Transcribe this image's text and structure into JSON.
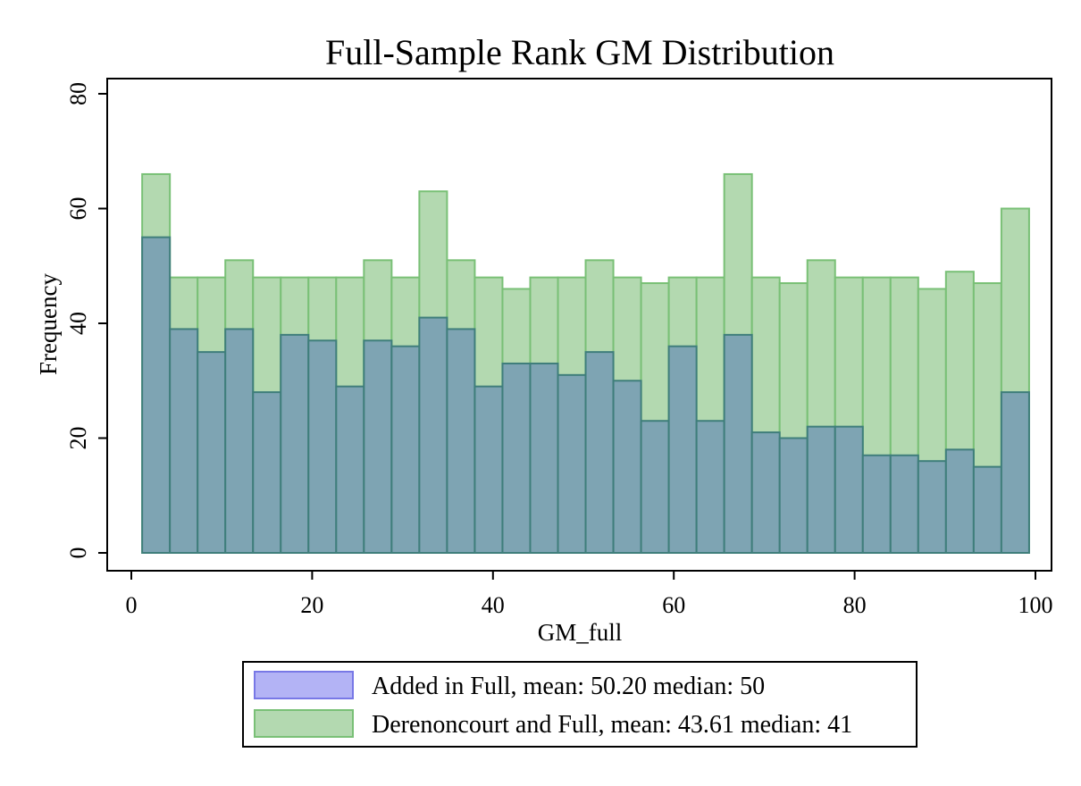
{
  "chart_data": {
    "type": "bar",
    "title": "Full-Sample Rank GM Distribution",
    "xlabel": "GM_full",
    "ylabel": "Frequency",
    "xlim": [
      0,
      100
    ],
    "ylim": [
      0,
      80
    ],
    "xticks": [
      0,
      20,
      40,
      60,
      80,
      100
    ],
    "yticks": [
      0,
      20,
      40,
      60,
      80
    ],
    "grid": false,
    "legend_position": "bottom",
    "bins": {
      "start": 1.2,
      "end": 99.3,
      "count": 32
    },
    "series": [
      {
        "name": "Derenoncourt and Full, mean: 43.61 median: 41",
        "fill": "#b3d9b0",
        "stroke": "#79c076",
        "values": [
          66,
          48,
          48,
          51,
          48,
          48,
          48,
          48,
          51,
          48,
          63,
          51,
          48,
          46,
          48,
          48,
          51,
          48,
          47,
          48,
          48,
          66,
          48,
          47,
          51,
          48,
          48,
          48,
          46,
          49,
          47,
          60
        ]
      },
      {
        "name": "Added in Full, mean: 50.20 median: 50",
        "fill": "#b3b3f5",
        "stroke": "#7878e6",
        "overlap_fill": "#7ea4b3",
        "overlap_stroke": "#3f7e7b",
        "values": [
          55,
          39,
          35,
          39,
          28,
          38,
          37,
          29,
          37,
          36,
          41,
          39,
          29,
          33,
          33,
          31,
          35,
          30,
          23,
          36,
          23,
          38,
          21,
          20,
          22,
          22,
          17,
          17,
          16,
          18,
          15,
          28
        ]
      }
    ]
  }
}
